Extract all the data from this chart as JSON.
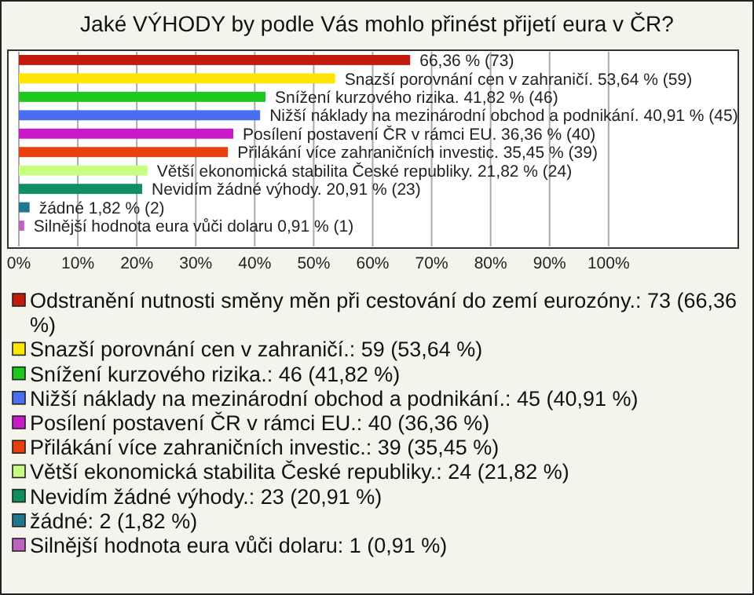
{
  "chart_data": {
    "type": "bar",
    "orientation": "horizontal",
    "title": "Jaké VÝHODY by podle Vás mohlo přinést přijetí eura v ČR?",
    "categories": [
      null,
      null,
      null,
      null,
      null,
      null,
      null,
      null,
      null,
      null
    ],
    "series": [
      {
        "name": "Odstranění nutnosti směny měn při cestování do zemí eurozóny.: 73 (66,36 %)",
        "color": "#c41a0c",
        "values": [
          66.36,
          null,
          null,
          null,
          null,
          null,
          null,
          null,
          null,
          null
        ],
        "value_labels": [
          "66,36 % (73)",
          null,
          null,
          null,
          null,
          null,
          null,
          null,
          null,
          null
        ]
      },
      {
        "name": "Snazší porovnání cen v zahraničí.: 59 (53,64 %)",
        "color": "#ffe600",
        "values": [
          null,
          53.64,
          null,
          null,
          null,
          null,
          null,
          null,
          null,
          null
        ],
        "value_labels": [
          null,
          "Snazší porovnání cen v zahraničí. 53,64 % (59)",
          null,
          null,
          null,
          null,
          null,
          null,
          null,
          null
        ]
      },
      {
        "name": "Snížení kurzového rizika.: 46 (41,82 %)",
        "color": "#1ec81e",
        "values": [
          null,
          null,
          41.82,
          null,
          null,
          null,
          null,
          null,
          null,
          null
        ],
        "value_labels": [
          null,
          null,
          "Snížení kurzového rizika. 41,82 % (46)",
          null,
          null,
          null,
          null,
          null,
          null,
          null
        ]
      },
      {
        "name": "Nižší náklady na mezinárodní obchod a podnikání.: 45 (40,91 %)",
        "color": "#4a6ef0",
        "values": [
          null,
          null,
          null,
          40.91,
          null,
          null,
          null,
          null,
          null,
          null
        ],
        "value_labels": [
          null,
          null,
          null,
          "Nižší náklady na mezinárodní obchod a podnikání. 40,91 % (45)",
          null,
          null,
          null,
          null,
          null,
          null
        ]
      },
      {
        "name": "Posílení postavení ČR v rámci EU.: 40 (36,36 %)",
        "color": "#c81ac8",
        "values": [
          null,
          null,
          null,
          null,
          36.36,
          null,
          null,
          null,
          null,
          null
        ],
        "value_labels": [
          null,
          null,
          null,
          null,
          "Posílení postavení ČR v rámci EU. 36,36 % (40)",
          null,
          null,
          null,
          null,
          null
        ]
      },
      {
        "name": "Přilákání více zahraničních investic.: 39 (35,45 %)",
        "color": "#e8400c",
        "values": [
          null,
          null,
          null,
          null,
          null,
          35.45,
          null,
          null,
          null,
          null
        ],
        "value_labels": [
          null,
          null,
          null,
          null,
          null,
          "Přilákání více zahraničních investic. 35,45 % (39)",
          null,
          null,
          null,
          null
        ]
      },
      {
        "name": "Větší ekonomická stabilita České republiky.: 24 (21,82 %)",
        "color": "#c8ff80",
        "values": [
          null,
          null,
          null,
          null,
          null,
          null,
          21.82,
          null,
          null,
          null
        ],
        "value_labels": [
          null,
          null,
          null,
          null,
          null,
          null,
          "Větší ekonomická stabilita České republiky. 21,82 % (24)",
          null,
          null,
          null
        ]
      },
      {
        "name": "Nevidím žádné výhody.: 23 (20,91 %)",
        "color": "#109060",
        "values": [
          null,
          null,
          null,
          null,
          null,
          null,
          null,
          20.91,
          null,
          null
        ],
        "value_labels": [
          null,
          null,
          null,
          null,
          null,
          null,
          null,
          "Nevidím žádné výhody. 20,91 % (23)",
          null,
          null
        ]
      },
      {
        "name": "žádné: 2 (1,82 %)",
        "color": "#1e7890",
        "values": [
          null,
          null,
          null,
          null,
          null,
          null,
          null,
          null,
          1.82,
          null
        ],
        "value_labels": [
          null,
          null,
          null,
          null,
          null,
          null,
          null,
          null,
          "žádné 1,82 % (2)",
          null
        ]
      },
      {
        "name": "Silnější hodnota eura vůči dolaru: 1 (0,91 %)",
        "color": "#c060c0",
        "values": [
          null,
          null,
          null,
          null,
          null,
          null,
          null,
          null,
          null,
          0.91
        ],
        "value_labels": [
          null,
          null,
          null,
          null,
          null,
          null,
          null,
          null,
          null,
          "Silnější hodnota eura vůči dolaru 0,91 % (1)"
        ]
      }
    ],
    "xlim": [
      0,
      122
    ],
    "xticks": [
      {
        "value": 0,
        "label": "0%"
      },
      {
        "value": 10,
        "label": "10%"
      },
      {
        "value": 20,
        "label": "20%"
      },
      {
        "value": 30,
        "label": "30%"
      },
      {
        "value": 40,
        "label": "40%"
      },
      {
        "value": 50,
        "label": "50%"
      },
      {
        "value": 60,
        "label": "60%"
      },
      {
        "value": 70,
        "label": "70%"
      },
      {
        "value": 80,
        "label": "80%"
      },
      {
        "value": 90,
        "label": "90%"
      },
      {
        "value": 100,
        "label": "100%"
      }
    ],
    "grid": "x",
    "legend": "bottom"
  }
}
